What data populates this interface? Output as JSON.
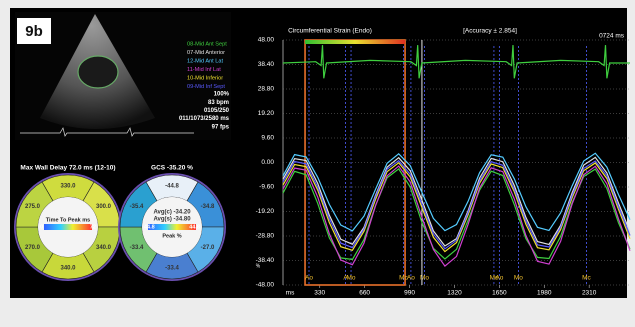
{
  "panel": {
    "badge": "9b",
    "info": [
      "100%",
      "83 bpm",
      "0105/250",
      "011/1073/2580 ms",
      "97 fps"
    ],
    "delay_map": {
      "title": "Max Wall Delay 72.0 ms (12-10)",
      "segments": [
        "330.0",
        "300.0",
        "340.0",
        "340.0",
        "270.0",
        "275.0"
      ],
      "center": "Time To Peak ms",
      "scale_min": "0",
      "scale_max": "72"
    },
    "strain_map": {
      "title": "GCS -35.20 %",
      "segments": [
        "-44.8",
        "-34.8",
        "-27.0",
        "-33.4",
        "-33.4",
        "-35.4"
      ],
      "avg_c": "Avg(c) -34.20",
      "avg_s": "Avg(s) -34.80",
      "scale_min": "44.8",
      "scale_max": "44.8",
      "center": "Peak %"
    }
  },
  "chart_data": {
    "type": "line",
    "title": "Circumferential Strain (Endo)",
    "subtitle": "[Accuracy ± 2.854]",
    "time_label": "0724 ms",
    "x_label": "ms",
    "y_label": "%",
    "x": [
      60,
      145,
      230,
      315,
      400,
      485,
      570,
      655,
      740,
      825,
      910,
      995,
      1080,
      1165,
      1250,
      1335,
      1420,
      1505,
      1590,
      1675,
      1760,
      1845,
      1930,
      2015,
      2100,
      2185,
      2270,
      2355,
      2440,
      2525,
      2610
    ],
    "xlim": [
      60,
      2610
    ],
    "xticks": [
      330,
      660,
      990,
      1320,
      1650,
      1980,
      2310
    ],
    "ylim": [
      -48,
      48
    ],
    "yticks": [
      {
        "value": 48,
        "label": "48.00"
      },
      {
        "value": 38.4,
        "label": "38.40"
      },
      {
        "value": 28.8,
        "label": "28.80"
      },
      {
        "value": 19.2,
        "label": "19.20"
      },
      {
        "value": 9.6,
        "label": "9.60"
      },
      {
        "value": 0,
        "label": "0.00"
      },
      {
        "value": -9.6,
        "label": "-9.60"
      },
      {
        "value": -19.2,
        "label": "-19.20"
      },
      {
        "value": -28.8,
        "label": "-28.80"
      },
      {
        "value": -38.4,
        "label": "-38.40"
      },
      {
        "value": -48,
        "label": "-48.00"
      }
    ],
    "grid": true,
    "series": [
      {
        "name": "08-Mid Ant Sept",
        "color": "#3fcf3f",
        "values": [
          -12.0,
          -3.5,
          -4.8,
          -16.0,
          -29.5,
          -37.4,
          -38.0,
          -30.2,
          -16.8,
          -6.0,
          -2.5,
          -9.6,
          -23.4,
          -33.6,
          -37.8,
          -34.0,
          -22.6,
          -10.8,
          -3.4,
          -5.1,
          -16.5,
          -29.8,
          -37.2,
          -37.6,
          -29.0,
          -15.6,
          -5.5,
          -2.6,
          -10.2,
          -23.5,
          -33.9
        ]
      },
      {
        "name": "07-Mid Anterior",
        "color": "#e0e0e0",
        "values": [
          -6.5,
          1.5,
          0.8,
          -8.2,
          -20.6,
          -30.1,
          -32.0,
          -25.4,
          -12.9,
          -1.8,
          1.9,
          -3.2,
          -14.6,
          -26.8,
          -32.7,
          -29.8,
          -18.9,
          -6.1,
          1.6,
          0.3,
          -9.0,
          -21.5,
          -31.0,
          -32.1,
          -24.6,
          -11.8,
          -1.0,
          2.0,
          -4.1,
          -15.8,
          -27.2
        ]
      },
      {
        "name": "12-Mid Ant Lat",
        "color": "#55ccff",
        "values": [
          -5.2,
          3.1,
          2.2,
          -5.8,
          -16.4,
          -24.5,
          -26.8,
          -21.0,
          -10.5,
          -0.3,
          3.4,
          -1.2,
          -11.6,
          -21.9,
          -26.7,
          -24.3,
          -15.2,
          -4.0,
          3.0,
          2.1,
          -6.4,
          -17.3,
          -25.4,
          -26.6,
          -19.8,
          -9.1,
          0.6,
          3.6,
          -1.8,
          -12.5,
          -22.4
        ]
      },
      {
        "name": "11-Mid Inf Lat",
        "color": "#d040d0",
        "values": [
          -10.4,
          -2.2,
          -3.0,
          -13.5,
          -27.9,
          -38.2,
          -40.1,
          -31.6,
          -17.0,
          -5.2,
          -1.4,
          -7.6,
          -21.3,
          -34.1,
          -40.6,
          -36.8,
          -24.2,
          -10.0,
          -2.1,
          -3.6,
          -14.3,
          -28.6,
          -38.7,
          -39.8,
          -30.9,
          -16.2,
          -4.8,
          -1.5,
          -8.4,
          -22.0,
          -34.6
        ]
      },
      {
        "name": "10-Mid Inferior",
        "color": "#f0e030",
        "values": [
          -8.8,
          -0.8,
          -1.6,
          -10.8,
          -23.5,
          -33.0,
          -34.4,
          -26.9,
          -14.5,
          -3.6,
          -0.1,
          -5.7,
          -17.5,
          -29.3,
          -34.9,
          -31.4,
          -20.5,
          -8.1,
          -0.6,
          -2.0,
          -11.5,
          -24.2,
          -33.4,
          -34.2,
          -26.3,
          -13.7,
          -3.2,
          -0.2,
          -6.3,
          -18.3,
          -29.9
        ]
      },
      {
        "name": "09-Mid Inf Sept",
        "color": "#5a5aff",
        "values": [
          -7.6,
          0.4,
          -0.5,
          -9.6,
          -22.0,
          -31.6,
          -33.3,
          -26.0,
          -13.4,
          -2.6,
          0.7,
          -4.6,
          -16.2,
          -28.0,
          -33.8,
          -30.5,
          -19.6,
          -7.2,
          0.3,
          -1.1,
          -10.4,
          -22.9,
          -32.3,
          -33.1,
          -25.4,
          -12.8,
          -2.3,
          0.6,
          -5.2,
          -17.1,
          -28.6
        ]
      },
      {
        "color": "#3fcf3f",
        "x": [
          60,
          300,
          340,
          350,
          360,
          380,
          700,
          1000,
          1040,
          1050,
          1060,
          1080,
          1400,
          1700,
          1740,
          1750,
          1760,
          1780,
          2100,
          2380,
          2420,
          2430,
          2440,
          2460,
          2610
        ],
        "values": [
          39,
          39.5,
          38,
          46,
          33,
          39,
          40,
          39.5,
          38,
          46,
          33,
          39,
          40,
          39.5,
          38,
          46,
          33,
          39,
          40,
          39.5,
          38,
          46,
          33,
          39,
          39
        ]
      }
    ],
    "highlight_range": [
      222,
      957
    ],
    "cursor": 1081,
    "events": [
      {
        "label": "Ao",
        "x": 251
      },
      {
        "label": "A",
        "x": 520
      },
      {
        "label": "Mo",
        "x": 560
      },
      {
        "label": "Mc",
        "x": 945
      },
      {
        "label": "Ao",
        "x": 1000
      },
      {
        "label": "Mo",
        "x": 1100
      },
      {
        "label": "Mc",
        "x": 1610
      },
      {
        "label": "Ao",
        "x": 1650
      },
      {
        "label": "Mo",
        "x": 1790
      },
      {
        "label": "Mc",
        "x": 2290
      }
    ]
  }
}
